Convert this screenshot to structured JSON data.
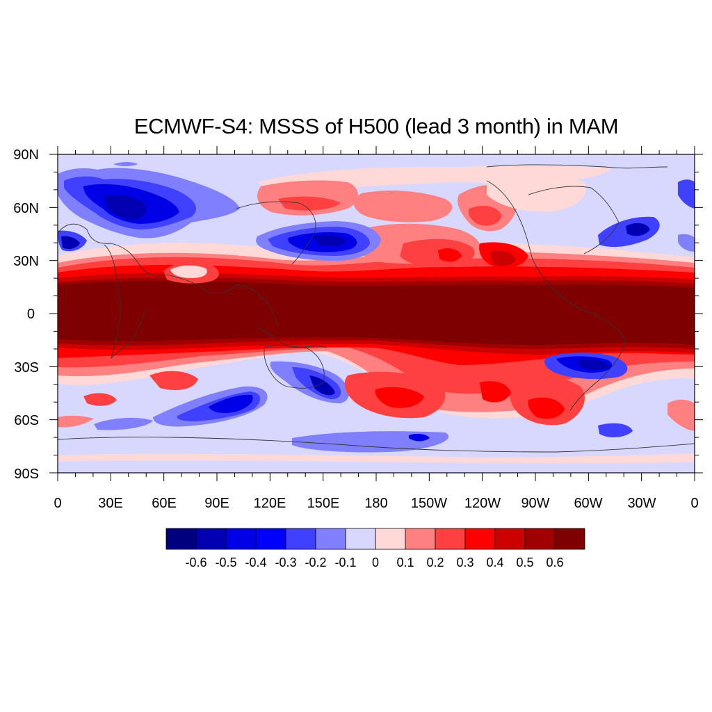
{
  "title": "ECMWF-S4: MSSS of H500 (lead 3 month) in MAM",
  "lat_ticks": [
    "90N",
    "60N",
    "30N",
    "0",
    "30S",
    "60S",
    "90S"
  ],
  "lon_ticks": [
    "0",
    "30E",
    "60E",
    "90E",
    "120E",
    "150E",
    "180",
    "150W",
    "120W",
    "90W",
    "60W",
    "30W",
    "0"
  ],
  "colorbar": {
    "labels": [
      "-0.6",
      "-0.5",
      "-0.4",
      "-0.3",
      "-0.2",
      "-0.1",
      "0",
      "0.1",
      "0.2",
      "0.3",
      "0.4",
      "0.5",
      "0.6"
    ],
    "colors": [
      "#00007f",
      "#0000b2",
      "#0000e6",
      "#0000ff",
      "#4040ff",
      "#8080ff",
      "#d8d8ff",
      "#ffd8d8",
      "#ff8080",
      "#ff4040",
      "#ff0000",
      "#cc0000",
      "#a00000",
      "#7f0000"
    ]
  },
  "field_colors": {
    "neg_1": "#d8d8ff",
    "neg_2": "#8080ff",
    "neg_3": "#4040ff",
    "neg_4": "#0000e6",
    "neg_5": "#0000b2",
    "pos_1": "#ffd8d8",
    "pos_2": "#ff8080",
    "pos_3": "#ff4040",
    "pos_4": "#ff0000",
    "pos_5": "#cc0000",
    "pos_6": "#a00000",
    "pos_7": "#7f0000"
  }
}
